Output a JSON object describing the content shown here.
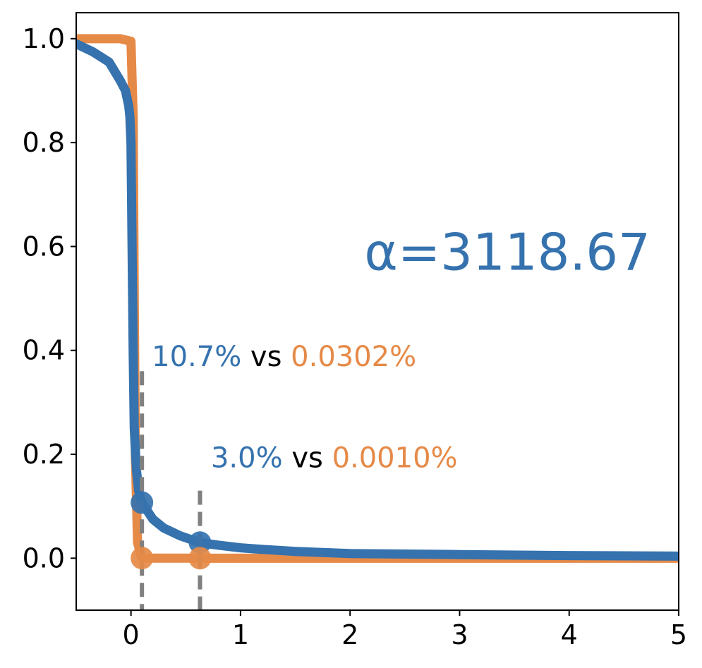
{
  "colors": {
    "blue": "#3572ae",
    "orange": "#e68a48",
    "black": "#000000",
    "gray": "#808080"
  },
  "chart_data": {
    "type": "line",
    "title": "",
    "xlabel": "",
    "ylabel": "",
    "xlim": [
      -0.5,
      5
    ],
    "ylim": [
      -0.1,
      1.05
    ],
    "xticks": [
      0,
      1,
      2,
      3,
      4,
      5
    ],
    "xtick_labels": [
      "0",
      "1",
      "2",
      "3",
      "4",
      "5"
    ],
    "yticks": [
      0.0,
      0.2,
      0.4,
      0.6,
      0.8,
      1.0
    ],
    "ytick_labels": [
      "0.0",
      "0.2",
      "0.4",
      "0.6",
      "0.8",
      "1.0"
    ],
    "grid": false,
    "series": [
      {
        "color": "#e68a48",
        "x": [
          -0.5,
          -0.1,
          0.0,
          0.02,
          0.03,
          0.04,
          0.06,
          0.1,
          0.2,
          0.63,
          1.0,
          2.0,
          3.0,
          4.0,
          5.0
        ],
        "y": [
          1.0,
          1.0,
          0.995,
          0.85,
          0.5,
          0.2,
          0.03,
          0.0003,
          0.0002,
          1e-05,
          0.0,
          0.0,
          0.0,
          0.0,
          0.0
        ]
      },
      {
        "color": "#3572ae",
        "x": [
          -0.5,
          -0.35,
          -0.2,
          -0.1,
          -0.05,
          -0.02,
          -0.01,
          0.0,
          0.01,
          0.02,
          0.03,
          0.05,
          0.07,
          0.1,
          0.2,
          0.3,
          0.45,
          0.63,
          0.8,
          1.0,
          1.2,
          1.5,
          2.0,
          3.0,
          4.0,
          5.0
        ],
        "y": [
          0.99,
          0.975,
          0.955,
          0.92,
          0.9,
          0.87,
          0.85,
          0.8,
          0.6,
          0.4,
          0.25,
          0.17,
          0.13,
          0.107,
          0.075,
          0.058,
          0.043,
          0.03,
          0.025,
          0.02,
          0.017,
          0.013,
          0.009,
          0.007,
          0.005,
          0.004
        ]
      }
    ],
    "markers": [
      {
        "x": 0.1,
        "y": 0.107,
        "color": "#3572ae"
      },
      {
        "x": 0.1,
        "y": 0.0003,
        "color": "#e68a48"
      },
      {
        "x": 0.63,
        "y": 0.03,
        "color": "#3572ae"
      },
      {
        "x": 0.63,
        "y": 1e-05,
        "color": "#e68a48"
      }
    ],
    "vlines": [
      {
        "x": 0.1,
        "y_top": 0.36
      },
      {
        "x": 0.63,
        "y_top": 0.13
      }
    ],
    "annotations": [
      {
        "x": 0.19,
        "y": 0.37,
        "parts": [
          {
            "text": "10.7%",
            "color": "#3572ae"
          },
          {
            "text": " vs ",
            "color": "#000000"
          },
          {
            "text": "0.0302%",
            "color": "#e68a48"
          }
        ]
      },
      {
        "x": 0.73,
        "y": 0.175,
        "parts": [
          {
            "text": "3.0%",
            "color": "#3572ae"
          },
          {
            "text": " vs ",
            "color": "#000000"
          },
          {
            "text": "0.0010%",
            "color": "#e68a48"
          }
        ]
      }
    ],
    "alpha_label": {
      "text": "α=3118.67",
      "x": 2.13,
      "y": 0.555,
      "color": "#3572ae"
    }
  }
}
